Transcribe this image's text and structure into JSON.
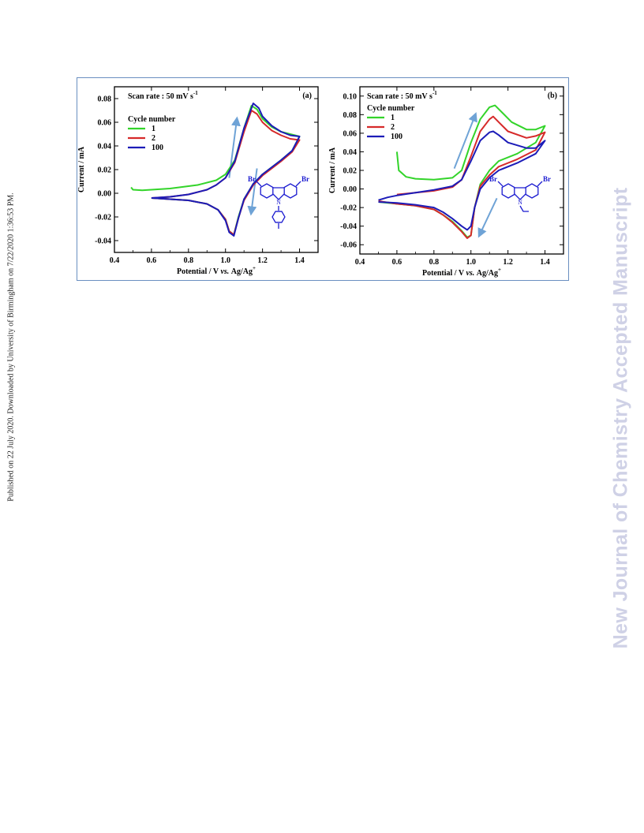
{
  "side_text_left": "Published on 22 July 2020. Downloaded by University of Birmingham on 7/22/2020 1:36:53 PM.",
  "side_text_right": "New Journal of Chemistry Accepted Manuscript",
  "colors": {
    "cycle1": "#33d42a",
    "cycle2": "#d62a2a",
    "cycle100": "#1c1cb8",
    "arrow": "#6fa3d6",
    "molecule": "#1a1ad0",
    "frame": "#6a8fc0"
  },
  "chart_data": [
    {
      "type": "line",
      "panel_label": "(a)",
      "scan_rate": "Scan rate : 50 mV s",
      "scan_rate_exp": "-1",
      "legend_title": "Cycle number",
      "xlabel": "Potential / V",
      "xlabel_italic": "vs.",
      "xlabel_tail": "Ag/Ag",
      "xlabel_sup": "+",
      "ylabel": "Current / mA",
      "xlim": [
        0.4,
        1.5
      ],
      "ylim": [
        -0.05,
        0.09
      ],
      "xticks": [
        "0.4",
        "0.6",
        "0.8",
        "1.0",
        "1.2",
        "1.4"
      ],
      "yticks": [
        "-0.04",
        "-0.02",
        "0.00",
        "0.02",
        "0.04",
        "0.06",
        "0.08"
      ],
      "molecule_labels": [
        "Br",
        "Br",
        "N"
      ],
      "series": [
        {
          "name": "1",
          "key": "cycle1",
          "points": [
            [
              0.49,
              0.005
            ],
            [
              0.5,
              0.003
            ],
            [
              0.55,
              0.0025
            ],
            [
              0.7,
              0.004
            ],
            [
              0.85,
              0.007
            ],
            [
              0.95,
              0.011
            ],
            [
              1.0,
              0.016
            ],
            [
              1.05,
              0.028
            ],
            [
              1.1,
              0.055
            ],
            [
              1.14,
              0.074
            ],
            [
              1.17,
              0.071
            ],
            [
              1.2,
              0.063
            ],
            [
              1.25,
              0.056
            ],
            [
              1.3,
              0.052
            ],
            [
              1.35,
              0.05
            ],
            [
              1.4,
              0.048
            ],
            [
              1.36,
              0.036
            ],
            [
              1.3,
              0.028
            ],
            [
              1.2,
              0.016
            ],
            [
              1.15,
              0.008
            ],
            [
              1.1,
              -0.005
            ],
            [
              1.07,
              -0.02
            ],
            [
              1.045,
              -0.035
            ],
            [
              1.02,
              -0.032
            ],
            [
              1.0,
              -0.022
            ],
            [
              0.96,
              -0.014
            ],
            [
              0.9,
              -0.009
            ],
            [
              0.8,
              -0.006
            ],
            [
              0.7,
              -0.005
            ],
            [
              0.6,
              -0.004
            ]
          ]
        },
        {
          "name": "2",
          "key": "cycle2",
          "points": [
            [
              0.6,
              -0.004
            ],
            [
              0.7,
              -0.003
            ],
            [
              0.8,
              -0.001
            ],
            [
              0.9,
              0.003
            ],
            [
              0.95,
              0.007
            ],
            [
              1.0,
              0.013
            ],
            [
              1.05,
              0.026
            ],
            [
              1.1,
              0.052
            ],
            [
              1.14,
              0.07
            ],
            [
              1.17,
              0.067
            ],
            [
              1.2,
              0.06
            ],
            [
              1.25,
              0.053
            ],
            [
              1.3,
              0.049
            ],
            [
              1.35,
              0.046
            ],
            [
              1.4,
              0.045
            ],
            [
              1.36,
              0.035
            ],
            [
              1.3,
              0.027
            ],
            [
              1.2,
              0.015
            ],
            [
              1.15,
              0.007
            ],
            [
              1.1,
              -0.006
            ],
            [
              1.07,
              -0.021
            ],
            [
              1.045,
              -0.035
            ],
            [
              1.02,
              -0.032
            ],
            [
              1.0,
              -0.022
            ],
            [
              0.96,
              -0.014
            ],
            [
              0.9,
              -0.009
            ],
            [
              0.8,
              -0.006
            ],
            [
              0.7,
              -0.005
            ],
            [
              0.6,
              -0.004
            ]
          ]
        },
        {
          "name": "100",
          "key": "cycle100",
          "points": [
            [
              0.6,
              -0.004
            ],
            [
              0.7,
              -0.003
            ],
            [
              0.8,
              -0.001
            ],
            [
              0.9,
              0.003
            ],
            [
              0.95,
              0.007
            ],
            [
              1.0,
              0.013
            ],
            [
              1.05,
              0.027
            ],
            [
              1.1,
              0.055
            ],
            [
              1.15,
              0.076
            ],
            [
              1.18,
              0.072
            ],
            [
              1.2,
              0.065
            ],
            [
              1.25,
              0.057
            ],
            [
              1.3,
              0.052
            ],
            [
              1.35,
              0.049
            ],
            [
              1.4,
              0.048
            ],
            [
              1.36,
              0.036
            ],
            [
              1.3,
              0.028
            ],
            [
              1.2,
              0.016
            ],
            [
              1.15,
              0.008
            ],
            [
              1.1,
              -0.005
            ],
            [
              1.07,
              -0.021
            ],
            [
              1.045,
              -0.036
            ],
            [
              1.02,
              -0.033
            ],
            [
              1.0,
              -0.023
            ],
            [
              0.96,
              -0.014
            ],
            [
              0.9,
              -0.009
            ],
            [
              0.8,
              -0.006
            ],
            [
              0.7,
              -0.005
            ],
            [
              0.6,
              -0.004
            ]
          ]
        }
      ]
    },
    {
      "type": "line",
      "panel_label": "(b)",
      "scan_rate": "Scan rate : 50 mV s",
      "scan_rate_exp": "-1",
      "legend_title": "Cycle number",
      "xlabel": "Potential / V",
      "xlabel_italic": "vs.",
      "xlabel_tail": "Ag/Ag",
      "xlabel_sup": "+",
      "ylabel": "Current / mA",
      "xlim": [
        0.4,
        1.5
      ],
      "ylim": [
        -0.07,
        0.11
      ],
      "xticks": [
        "0.4",
        "0.6",
        "0.8",
        "1.0",
        "1.2",
        "1.4"
      ],
      "yticks": [
        "-0.06",
        "-0.04",
        "-0.02",
        "0.00",
        "0.02",
        "0.04",
        "0.06",
        "0.08",
        "0.10"
      ],
      "molecule_labels": [
        "Br",
        "Br",
        "N"
      ],
      "series": [
        {
          "name": "1",
          "key": "cycle1",
          "points": [
            [
              0.6,
              0.04
            ],
            [
              0.61,
              0.02
            ],
            [
              0.65,
              0.013
            ],
            [
              0.7,
              0.011
            ],
            [
              0.8,
              0.01
            ],
            [
              0.9,
              0.012
            ],
            [
              0.95,
              0.02
            ],
            [
              1.0,
              0.05
            ],
            [
              1.05,
              0.075
            ],
            [
              1.1,
              0.088
            ],
            [
              1.13,
              0.09
            ],
            [
              1.17,
              0.082
            ],
            [
              1.22,
              0.072
            ],
            [
              1.3,
              0.064
            ],
            [
              1.35,
              0.064
            ],
            [
              1.4,
              0.068
            ],
            [
              1.35,
              0.05
            ],
            [
              1.25,
              0.038
            ],
            [
              1.15,
              0.03
            ],
            [
              1.1,
              0.02
            ],
            [
              1.05,
              0.005
            ],
            [
              1.02,
              -0.02
            ],
            [
              1.0,
              -0.05
            ],
            [
              0.98,
              -0.052
            ],
            [
              0.95,
              -0.045
            ],
            [
              0.9,
              -0.035
            ],
            [
              0.85,
              -0.028
            ],
            [
              0.8,
              -0.022
            ],
            [
              0.7,
              -0.018
            ],
            [
              0.6,
              -0.016
            ],
            [
              0.5,
              -0.014
            ]
          ]
        },
        {
          "name": "2",
          "key": "cycle2",
          "points": [
            [
              0.6,
              -0.006
            ],
            [
              0.7,
              -0.004
            ],
            [
              0.8,
              -0.002
            ],
            [
              0.9,
              0.002
            ],
            [
              0.95,
              0.01
            ],
            [
              1.0,
              0.035
            ],
            [
              1.05,
              0.062
            ],
            [
              1.1,
              0.075
            ],
            [
              1.12,
              0.078
            ],
            [
              1.15,
              0.072
            ],
            [
              1.2,
              0.062
            ],
            [
              1.3,
              0.055
            ],
            [
              1.35,
              0.057
            ],
            [
              1.4,
              0.061
            ],
            [
              1.35,
              0.042
            ],
            [
              1.25,
              0.032
            ],
            [
              1.15,
              0.024
            ],
            [
              1.1,
              0.015
            ],
            [
              1.05,
              0.003
            ],
            [
              1.02,
              -0.02
            ],
            [
              1.0,
              -0.05
            ],
            [
              0.98,
              -0.053
            ],
            [
              0.95,
              -0.046
            ],
            [
              0.9,
              -0.036
            ],
            [
              0.85,
              -0.028
            ],
            [
              0.8,
              -0.022
            ],
            [
              0.7,
              -0.018
            ],
            [
              0.6,
              -0.016
            ],
            [
              0.5,
              -0.013
            ]
          ]
        },
        {
          "name": "100",
          "key": "cycle100",
          "points": [
            [
              0.5,
              -0.012
            ],
            [
              0.55,
              -0.009
            ],
            [
              0.6,
              -0.007
            ],
            [
              0.7,
              -0.004
            ],
            [
              0.8,
              -0.001
            ],
            [
              0.9,
              0.003
            ],
            [
              0.95,
              0.01
            ],
            [
              1.0,
              0.03
            ],
            [
              1.05,
              0.052
            ],
            [
              1.1,
              0.061
            ],
            [
              1.12,
              0.062
            ],
            [
              1.15,
              0.058
            ],
            [
              1.2,
              0.05
            ],
            [
              1.3,
              0.044
            ],
            [
              1.35,
              0.044
            ],
            [
              1.4,
              0.052
            ],
            [
              1.35,
              0.038
            ],
            [
              1.25,
              0.028
            ],
            [
              1.15,
              0.02
            ],
            [
              1.1,
              0.012
            ],
            [
              1.05,
              0.0
            ],
            [
              1.02,
              -0.02
            ],
            [
              1.0,
              -0.04
            ],
            [
              0.98,
              -0.044
            ],
            [
              0.95,
              -0.04
            ],
            [
              0.9,
              -0.032
            ],
            [
              0.85,
              -0.025
            ],
            [
              0.8,
              -0.02
            ],
            [
              0.7,
              -0.017
            ],
            [
              0.6,
              -0.015
            ],
            [
              0.5,
              -0.014
            ]
          ]
        }
      ]
    }
  ]
}
